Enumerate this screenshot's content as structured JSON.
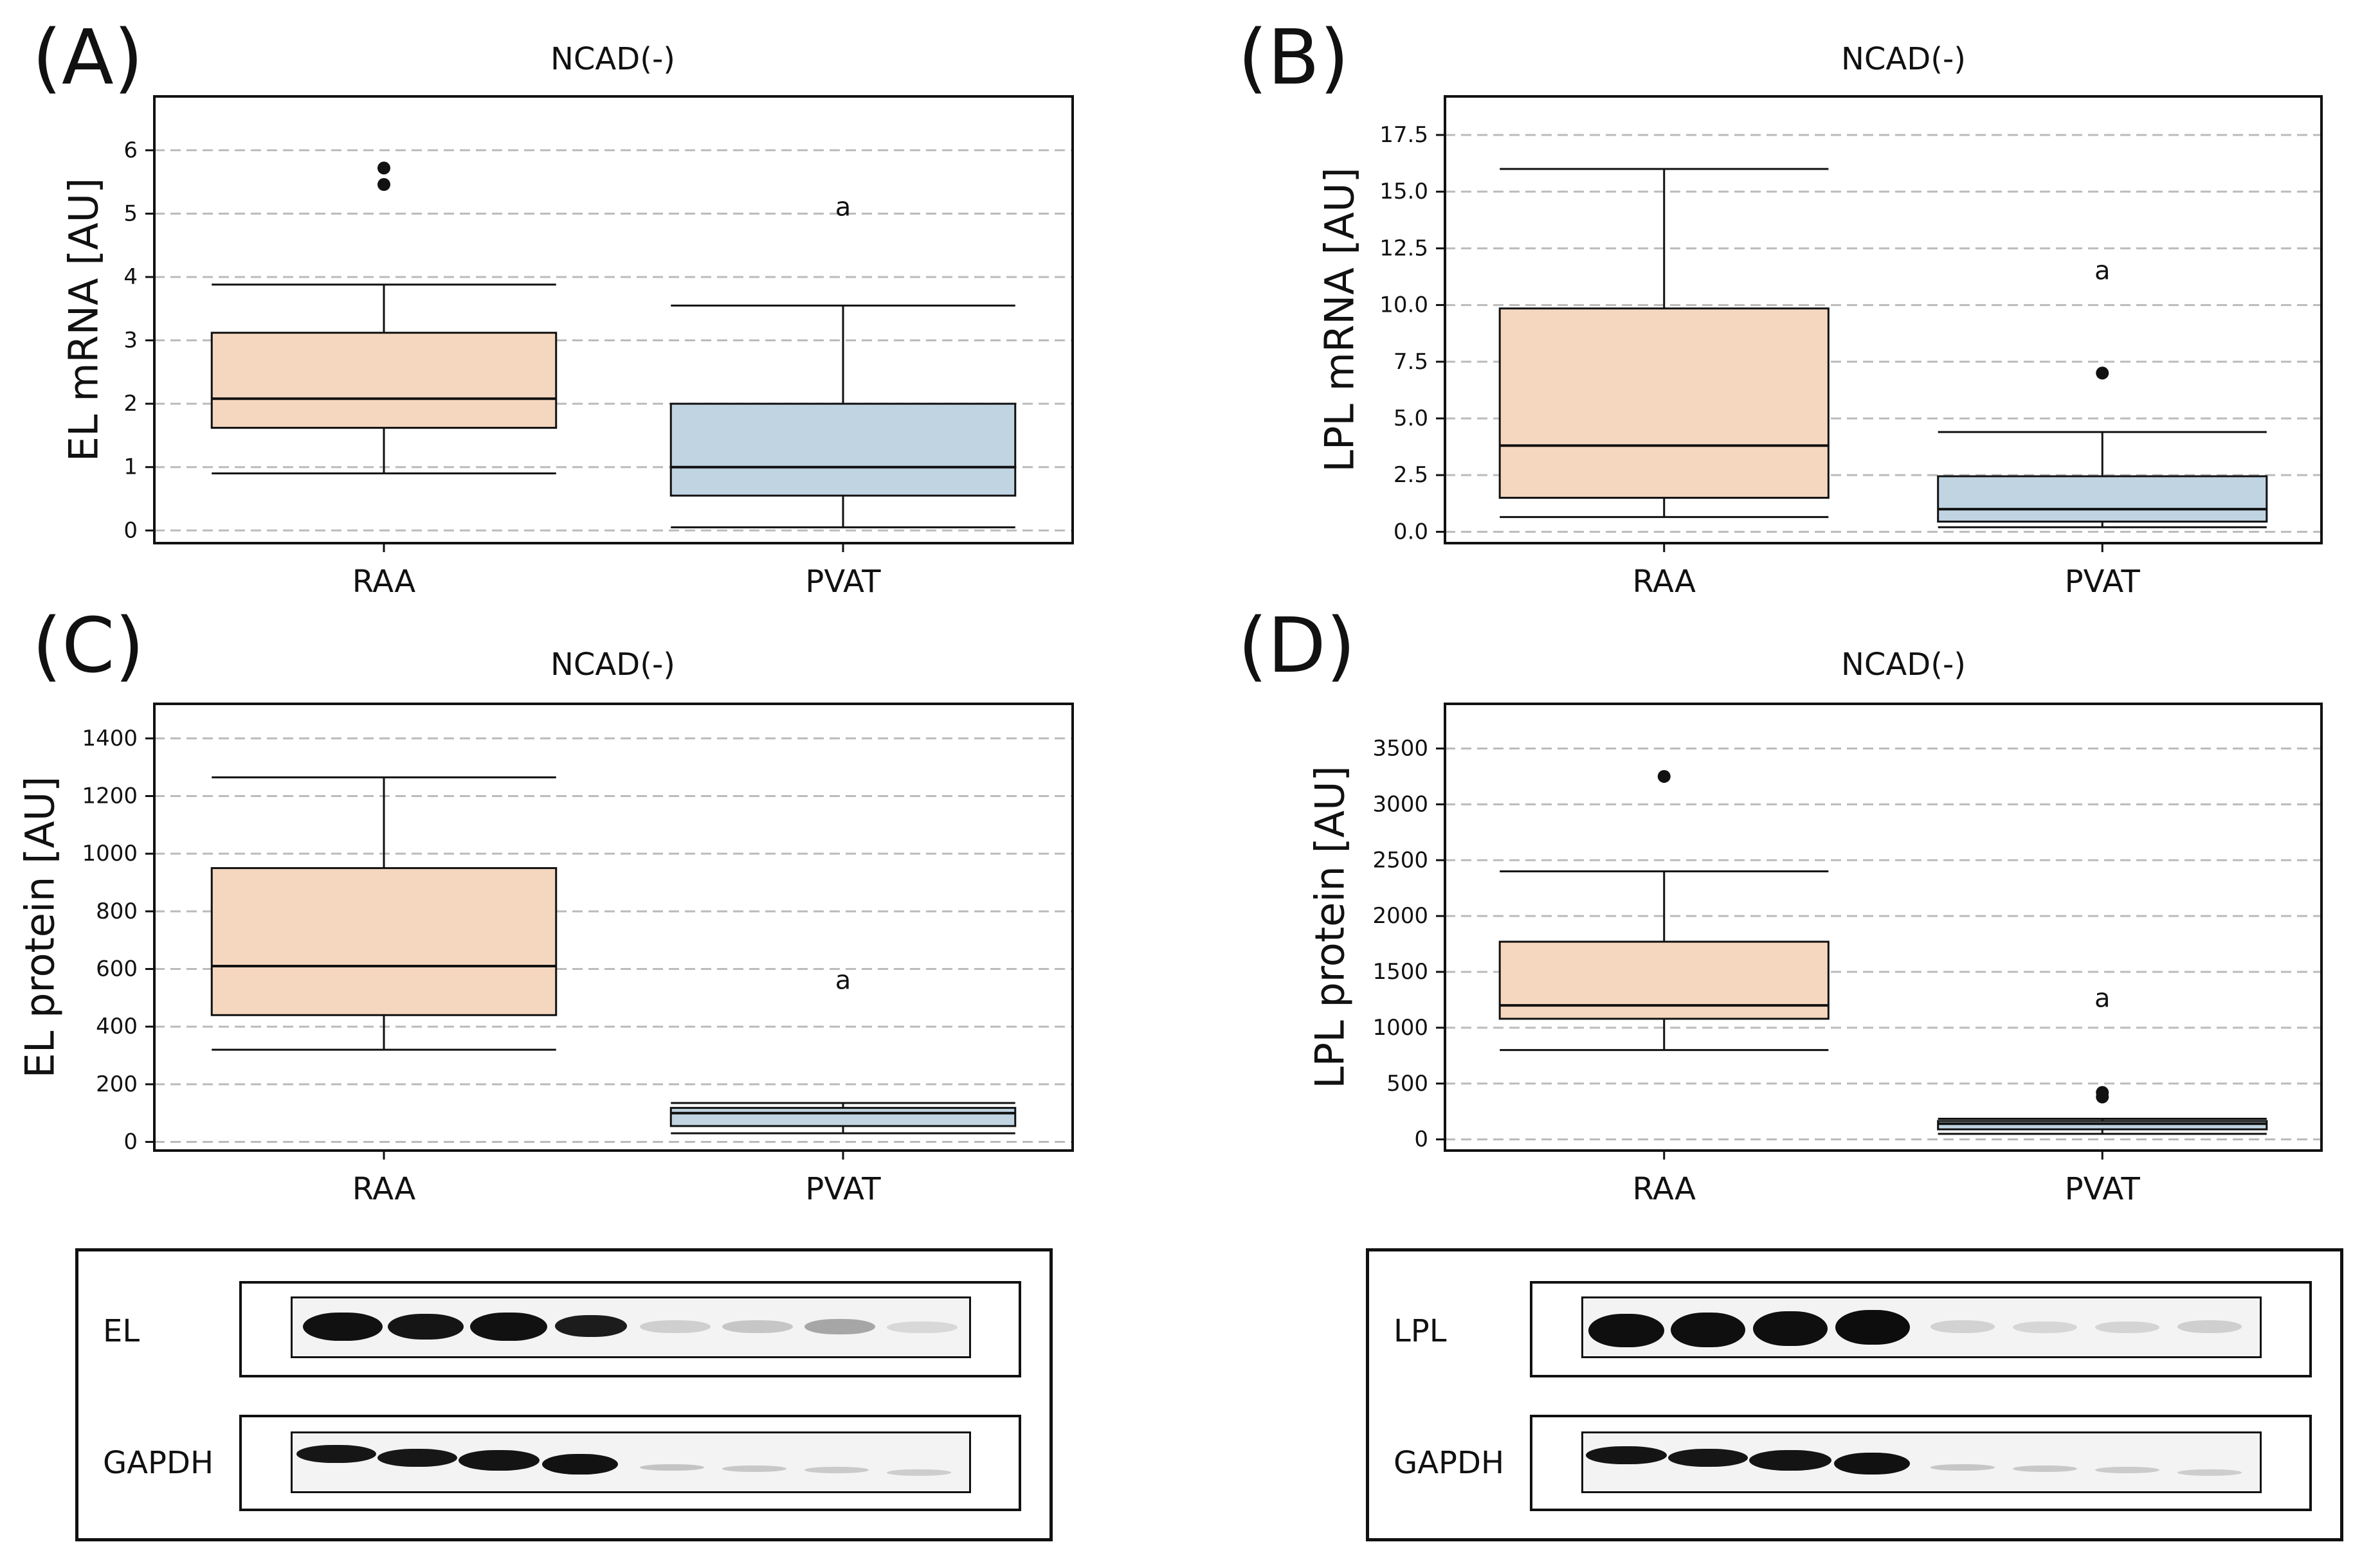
{
  "colors": {
    "raa": "#f5d7bf",
    "pvat": "#c0d4e2",
    "grid": "#bbbbbb",
    "ink": "#111111"
  },
  "charts": [
    {
      "letter": "(A)",
      "title": "NCAD(-)",
      "ylabel": "EL mRNA [AU]",
      "chart_data": {
        "type": "box",
        "categories": [
          "RAA",
          "PVAT"
        ],
        "ylim": [
          -0.2,
          6.85
        ],
        "yticks": [
          0,
          1,
          2,
          3,
          4,
          5,
          6
        ],
        "ytick_labels": [
          "0",
          "1",
          "2",
          "3",
          "4",
          "5",
          "6"
        ],
        "boxes": [
          {
            "name": "RAA",
            "whislo": 0.9,
            "q1": 1.62,
            "med": 2.08,
            "q3": 3.12,
            "whishi": 3.88,
            "fliers": [
              5.46,
              5.72
            ]
          },
          {
            "name": "PVAT",
            "whislo": 0.05,
            "q1": 0.55,
            "med": 1.0,
            "q3": 2.0,
            "whishi": 3.55,
            "fliers": []
          }
        ],
        "annotations": [
          {
            "category": "PVAT",
            "y": 5.1,
            "text": "a"
          }
        ]
      }
    },
    {
      "letter": "(B)",
      "title": "NCAD(-)",
      "ylabel": "LPL mRNA [AU]",
      "chart_data": {
        "type": "box",
        "categories": [
          "RAA",
          "PVAT"
        ],
        "ylim": [
          -0.5,
          19.2
        ],
        "yticks": [
          0,
          2.5,
          5,
          7.5,
          10,
          12.5,
          15,
          17.5
        ],
        "ytick_labels": [
          "0.0",
          "2.5",
          "5.0",
          "7.5",
          "10.0",
          "12.5",
          "15.0",
          "17.5"
        ],
        "boxes": [
          {
            "name": "RAA",
            "whislo": 0.65,
            "q1": 1.5,
            "med": 3.8,
            "q3": 9.85,
            "whishi": 16.0,
            "fliers": []
          },
          {
            "name": "PVAT",
            "whislo": 0.2,
            "q1": 0.45,
            "med": 1.0,
            "q3": 2.45,
            "whishi": 4.4,
            "fliers": [
              7.0
            ]
          }
        ],
        "annotations": [
          {
            "category": "PVAT",
            "y": 11.5,
            "text": "a"
          }
        ]
      }
    },
    {
      "letter": "(C)",
      "title": "NCAD(-)",
      "ylabel": "EL protein [AU]",
      "chart_data": {
        "type": "box",
        "categories": [
          "RAA",
          "PVAT"
        ],
        "ylim": [
          -30,
          1520
        ],
        "yticks": [
          0,
          200,
          400,
          600,
          800,
          1000,
          1200,
          1400
        ],
        "ytick_labels": [
          "0",
          "200",
          "400",
          "600",
          "800",
          "1000",
          "1200",
          "1400"
        ],
        "boxes": [
          {
            "name": "RAA",
            "whislo": 320,
            "q1": 440,
            "med": 610,
            "q3": 950,
            "whishi": 1265,
            "fliers": []
          },
          {
            "name": "PVAT",
            "whislo": 30,
            "q1": 55,
            "med": 100,
            "q3": 118,
            "whishi": 135,
            "fliers": []
          }
        ],
        "annotations": [
          {
            "category": "PVAT",
            "y": 560,
            "text": "a"
          }
        ]
      }
    },
    {
      "letter": "(D)",
      "title": "NCAD(-)",
      "ylabel": "LPL protein [AU]",
      "chart_data": {
        "type": "box",
        "categories": [
          "RAA",
          "PVAT"
        ],
        "ylim": [
          -100,
          3900
        ],
        "yticks": [
          0,
          500,
          1000,
          1500,
          2000,
          2500,
          3000,
          3500
        ],
        "ytick_labels": [
          "0",
          "500",
          "1000",
          "1500",
          "2000",
          "2500",
          "3000",
          "3500"
        ],
        "boxes": [
          {
            "name": "RAA",
            "whislo": 800,
            "q1": 1080,
            "med": 1200,
            "q3": 1770,
            "whishi": 2400,
            "fliers": [
              3250
            ]
          },
          {
            "name": "PVAT",
            "whislo": 50,
            "q1": 90,
            "med": 140,
            "q3": 165,
            "whishi": 185,
            "fliers": [
              380,
              420
            ]
          }
        ],
        "annotations": [
          {
            "category": "PVAT",
            "y": 1260,
            "text": "a"
          }
        ]
      }
    }
  ],
  "blots": [
    {
      "target_label": "EL",
      "control_label": "GAPDH"
    },
    {
      "target_label": "LPL",
      "control_label": "GAPDH"
    }
  ]
}
